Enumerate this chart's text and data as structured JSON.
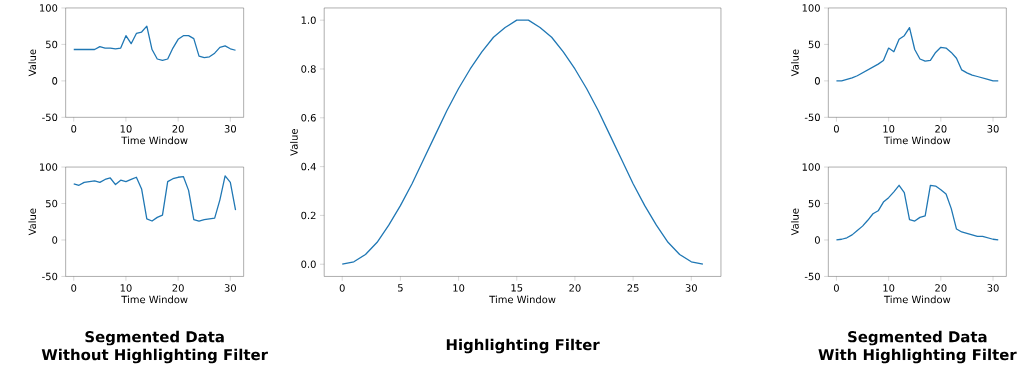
{
  "chart_data": [
    {
      "type": "line",
      "xlabel": "Time Window",
      "ylabel": "Value",
      "x": [
        0,
        1,
        2,
        3,
        4,
        5,
        6,
        7,
        8,
        9,
        10,
        11,
        12,
        13,
        14,
        15,
        16,
        17,
        18,
        19,
        20,
        21,
        22,
        23,
        24,
        25,
        26,
        27,
        28,
        29,
        30,
        31
      ],
      "series": [
        {
          "color": "#1f77b4",
          "values": [
            43,
            43,
            43,
            43,
            43,
            47,
            45,
            45,
            44,
            45,
            62,
            51,
            65,
            67,
            75,
            43,
            30,
            28,
            30,
            45,
            57,
            62,
            62,
            58,
            34,
            32,
            33,
            38,
            46,
            48,
            44,
            42
          ]
        }
      ],
      "xlim": [
        -1.55,
        32.55
      ],
      "ylim": [
        -50,
        100
      ],
      "xticks": [
        0,
        10,
        20,
        30
      ],
      "yticks": [
        -50,
        0,
        50,
        100
      ]
    },
    {
      "type": "line",
      "xlabel": "Time Window",
      "ylabel": "Value",
      "x": [
        0,
        1,
        2,
        3,
        4,
        5,
        6,
        7,
        8,
        9,
        10,
        11,
        12,
        13,
        14,
        15,
        16,
        17,
        18,
        19,
        20,
        21,
        22,
        23,
        24,
        25,
        26,
        27,
        28,
        29,
        30,
        31
      ],
      "series": [
        {
          "color": "#1f77b4",
          "values": [
            77,
            75,
            79,
            80,
            81,
            79,
            83,
            85,
            76,
            82,
            80,
            83,
            86,
            70,
            29,
            26,
            31,
            34,
            80,
            84,
            86,
            87,
            68,
            28,
            26,
            28,
            29,
            30,
            55,
            88,
            79,
            41
          ]
        }
      ],
      "xlim": [
        -1.55,
        32.55
      ],
      "ylim": [
        -50,
        100
      ],
      "xticks": [
        0,
        10,
        20,
        30
      ],
      "yticks": [
        -50,
        0,
        50,
        100
      ],
      "annotations": [
        "Segmented Data",
        "Without Highlighting Filter"
      ]
    },
    {
      "type": "line",
      "xlabel": "Time Window",
      "ylabel": "Value",
      "x": [
        0,
        1,
        2,
        3,
        4,
        5,
        6,
        7,
        8,
        9,
        10,
        11,
        12,
        13,
        14,
        15,
        16,
        17,
        18,
        19,
        20,
        21,
        22,
        23,
        24,
        25,
        26,
        27,
        28,
        29,
        30,
        31
      ],
      "series": [
        {
          "color": "#1f77b4",
          "values": [
            0.0,
            0.01,
            0.04,
            0.09,
            0.16,
            0.24,
            0.33,
            0.43,
            0.53,
            0.63,
            0.72,
            0.8,
            0.87,
            0.93,
            0.97,
            1.0,
            1.0,
            0.97,
            0.93,
            0.87,
            0.8,
            0.72,
            0.63,
            0.53,
            0.43,
            0.33,
            0.24,
            0.16,
            0.09,
            0.04,
            0.01,
            0.0
          ]
        }
      ],
      "xlim": [
        -1.55,
        32.55
      ],
      "ylim": [
        -0.05,
        1.05
      ],
      "xticks": [
        0,
        5,
        10,
        15,
        20,
        25,
        30
      ],
      "yticks": [
        {
          "value": 0,
          "label": "0.0"
        },
        {
          "value": 0.2,
          "label": "0.2"
        },
        {
          "value": 0.4,
          "label": "0.4"
        },
        {
          "value": 0.6,
          "label": "0.6"
        },
        {
          "value": 0.8,
          "label": "0.8"
        },
        {
          "value": 1,
          "label": "1.0"
        }
      ],
      "annotations": [
        "Highlighting Filter"
      ]
    },
    {
      "type": "line",
      "xlabel": "Time Window",
      "ylabel": "Value",
      "x": [
        0,
        1,
        2,
        3,
        4,
        5,
        6,
        7,
        8,
        9,
        10,
        11,
        12,
        13,
        14,
        15,
        16,
        17,
        18,
        19,
        20,
        21,
        22,
        23,
        24,
        25,
        26,
        27,
        28,
        29,
        30,
        31
      ],
      "series": [
        {
          "color": "#1f77b4",
          "values": [
            0,
            0,
            2,
            4,
            7,
            11,
            15,
            19,
            23,
            28,
            45,
            40,
            57,
            62,
            73,
            43,
            30,
            27,
            28,
            39,
            46,
            45,
            39,
            31,
            15,
            11,
            8,
            6,
            4,
            2,
            0,
            0
          ]
        }
      ],
      "xlim": [
        -1.55,
        32.55
      ],
      "ylim": [
        -50,
        100
      ],
      "xticks": [
        0,
        10,
        20,
        30
      ],
      "yticks": [
        -50,
        0,
        50,
        100
      ]
    },
    {
      "type": "line",
      "xlabel": "Time Window",
      "ylabel": "Value",
      "x": [
        0,
        1,
        2,
        3,
        4,
        5,
        6,
        7,
        8,
        9,
        10,
        11,
        12,
        13,
        14,
        15,
        16,
        17,
        18,
        19,
        20,
        21,
        22,
        23,
        24,
        25,
        26,
        27,
        28,
        29,
        30,
        31
      ],
      "series": [
        {
          "color": "#1f77b4",
          "values": [
            0,
            1,
            3,
            7,
            13,
            19,
            27,
            36,
            40,
            52,
            58,
            66,
            75,
            65,
            28,
            26,
            31,
            33,
            75,
            74,
            69,
            63,
            43,
            15,
            11,
            9,
            7,
            5,
            5,
            3,
            1,
            0
          ]
        }
      ],
      "xlim": [
        -1.55,
        32.55
      ],
      "ylim": [
        -50,
        100
      ],
      "xticks": [
        0,
        10,
        20,
        30
      ],
      "yticks": [
        -50,
        0,
        50,
        100
      ],
      "annotations": [
        "Segmented Data",
        "With Highlighting Filter"
      ]
    }
  ]
}
